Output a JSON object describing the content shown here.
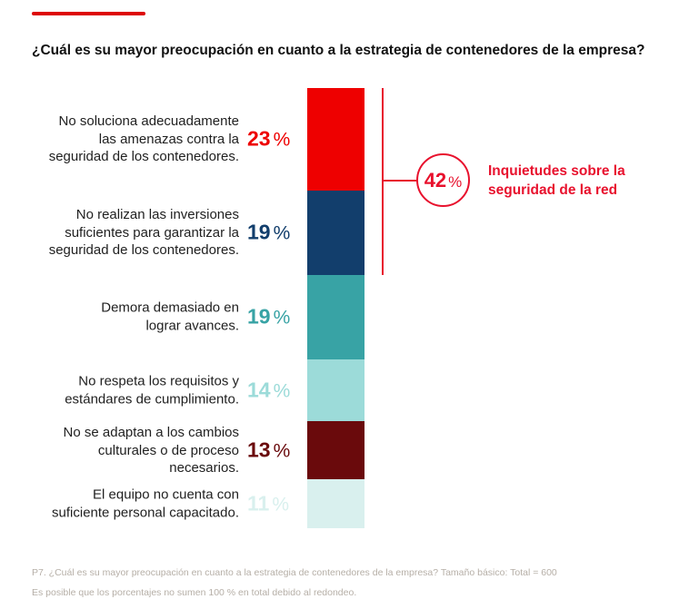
{
  "brand": {
    "rule_color": "#dd0404"
  },
  "title": "¿Cuál es su mayor preocupación en cuanto a la estrategia de contenedores de la empresa?",
  "chart_data": {
    "type": "bar",
    "variant": "single-stacked-vertical-column",
    "title": "¿Cuál es su mayor preocupación en cuanto a la estrategia de contenedores de la empresa?",
    "unit": "%",
    "categories": [
      "No soluciona adecuadamente las amenazas contra la seguridad de los contenedores.",
      "No realizan las inversiones suficientes para garantizar la seguridad de los contenedores.",
      "Demora demasiado en lograr avances.",
      "No respeta los requisitos y estándares de cumplimiento.",
      "No se adaptan a los cambios culturales o de proceso necesarios.",
      "El equipo no cuenta con suficiente personal capacitado."
    ],
    "values": [
      23,
      19,
      19,
      14,
      13,
      11
    ],
    "segments": [
      {
        "label": "No soluciona adecuadamente las amenazas contra la seguridad de los contenedores.",
        "lines": [
          "No soluciona adecuadamente",
          "las amenazas contra la",
          "seguridad de los contenedores."
        ],
        "value": 23,
        "value_label": "23 %",
        "color": "#ee0000"
      },
      {
        "label": "No realizan las inversiones suficientes para garantizar la seguridad de los contenedores.",
        "lines": [
          "No realizan las inversiones",
          "suficientes para garantizar la",
          "seguridad de los contenedores."
        ],
        "value": 19,
        "value_label": "19 %",
        "color": "#123e6c"
      },
      {
        "label": "Demora demasiado en lograr avances.",
        "lines": [
          "Demora demasiado en",
          "lograr avances."
        ],
        "value": 19,
        "value_label": "19 %",
        "color": "#38a3a5"
      },
      {
        "label": "No respeta los requisitos y estándares de cumplimiento.",
        "lines": [
          "No respeta los requisitos y",
          "estándares de cumplimiento."
        ],
        "value": 14,
        "value_label": "14 %",
        "color": "#9cdbd9"
      },
      {
        "label": "No se adaptan a los cambios culturales o de proceso necesarios.",
        "lines": [
          "No se adaptan a los cambios",
          "culturales o de proceso",
          "necesarios."
        ],
        "value": 13,
        "value_label": "13 %",
        "color": "#6a0a0c"
      },
      {
        "label": "El equipo no cuenta con suficiente personal capacitado.",
        "lines": [
          "El equipo no cuenta con",
          "suficiente personal capacitado."
        ],
        "value": 11,
        "value_label": "11 %",
        "color": "#d9f0ee"
      }
    ],
    "callout": {
      "value": 42,
      "value_number": "42",
      "unit": "%",
      "value_label": "42 %",
      "label": "Inquietudes sobre la seguridad de la red",
      "lines": [
        "Inquietudes sobre la",
        "seguridad de la red"
      ],
      "color": "#e8112d",
      "covers_segments": [
        0,
        1
      ]
    }
  },
  "footnotes": [
    "P7. ¿Cuál es su mayor preocupación en cuanto a la estrategia de contenedores de la empresa? Tamaño básico: Total = 600",
    "Es posible que los porcentajes no sumen 100 % en total debido al redondeo."
  ]
}
